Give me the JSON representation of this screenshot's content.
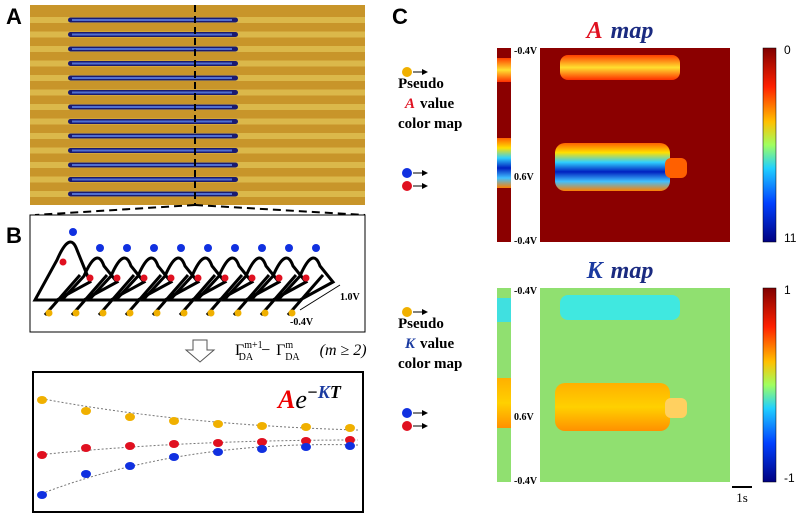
{
  "panel_a": {
    "label": "A"
  },
  "panel_b": {
    "label": "B",
    "scan_scale": {
      "top": "1.0V",
      "bottom": "-0.4V"
    },
    "formula": {
      "gamma": "Γ",
      "sub": "DA",
      "sup1": "m+1",
      "minus": "−",
      "sup2": "m",
      "condition": "(m ≥ 2)"
    },
    "fit": {
      "a": "A",
      "e": "e",
      "exp_minus": "−",
      "k": "K",
      "t": "T"
    }
  },
  "panel_c": {
    "label": "C",
    "a_map": {
      "title_symbol": "A",
      "title_word": "map",
      "pseudo_first": "Pseudo",
      "pseudo_symbol": "A",
      "pseudo_rest": "value",
      "pseudo_last": "color map",
      "voltage_top": "-0.4V",
      "voltage_mid": "0.6V",
      "voltage_bottom": "-0.4V",
      "colorbar_ticks": [
        0,
        11
      ]
    },
    "k_map": {
      "title_symbol": "K",
      "title_word": "map",
      "pseudo_first": "Pseudo",
      "pseudo_symbol": "K",
      "pseudo_rest": "value",
      "pseudo_last": "color map",
      "voltage_top": "-0.4V",
      "voltage_mid": "0.6V",
      "voltage_bottom": "-0.4V",
      "colorbar_ticks": [
        1,
        -1
      ]
    },
    "time_scale": "1s"
  }
}
